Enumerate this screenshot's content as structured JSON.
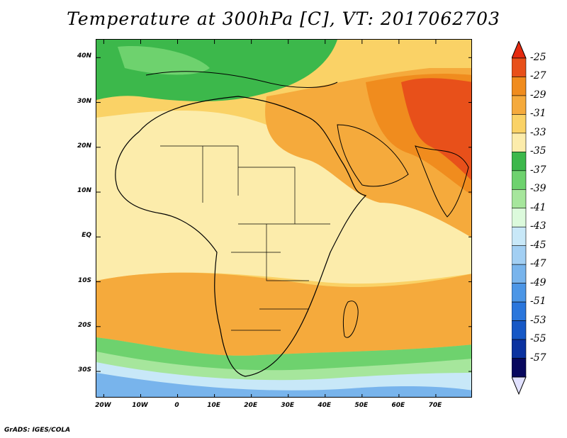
{
  "title": "Temperature at 300hPa [C], VT: 2017062703",
  "footer": "GrADS: IGES/COLA",
  "map": {
    "lat_labels": [
      "40N",
      "30N",
      "20N",
      "10N",
      "EQ",
      "10S",
      "20S",
      "30S"
    ],
    "lat_values": [
      40,
      30,
      20,
      10,
      0,
      -10,
      -20,
      -30
    ],
    "lon_labels": [
      "20W",
      "10W",
      "0",
      "10E",
      "20E",
      "30E",
      "40E",
      "50E",
      "60E",
      "70E"
    ],
    "lon_values": [
      -20,
      -10,
      0,
      10,
      20,
      30,
      40,
      50,
      60,
      70
    ],
    "lat_range": [
      -36,
      44
    ],
    "lon_range": [
      -22,
      80
    ]
  },
  "colorbar": {
    "labels": [
      "-25",
      "-27",
      "-29",
      "-31",
      "-33",
      "-35",
      "-37",
      "-39",
      "-41",
      "-43",
      "-45",
      "-47",
      "-49",
      "-51",
      "-53",
      "-55",
      "-57"
    ],
    "colors": [
      "#e8501a",
      "#f08c1e",
      "#f5aa3c",
      "#fad266",
      "#fcecab",
      "#3cb84b",
      "#6ed26e",
      "#a6e69c",
      "#dcfadc",
      "#c8e8f8",
      "#a2cff3",
      "#78b4ec",
      "#4c96e6",
      "#2a76dc",
      "#1658c6",
      "#0b32a0",
      "#08085e"
    ],
    "top_arrow_color": "#e52a10",
    "bottom_arrow_color": "#e1e1ff"
  }
}
